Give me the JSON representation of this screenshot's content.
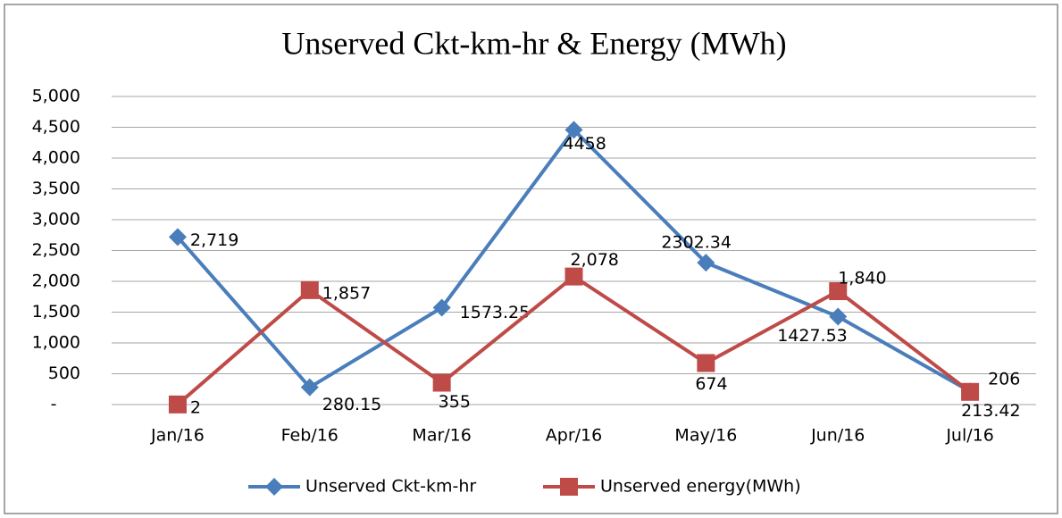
{
  "chart_data": {
    "type": "line",
    "title": "Unserved Ckt-km-hr & Energy (MWh)",
    "categories": [
      "Jan/16",
      "Feb/16",
      "Mar/16",
      "Apr/16",
      "May/16",
      "Jun/16",
      "Jul/16"
    ],
    "series": [
      {
        "name": "Unserved Ckt-km-hr",
        "color": "#4a7ebb",
        "marker": "diamond",
        "values": [
          2719,
          280.15,
          1573.25,
          4458,
          2302.34,
          1427.53,
          213.42
        ],
        "value_labels": [
          "2,719",
          "280.15",
          "1573.25",
          "4458",
          "2302.34",
          "1427.53",
          "213.42"
        ]
      },
      {
        "name": "Unserved energy(MWh)",
        "color": "#be4b48",
        "marker": "square",
        "values": [
          2,
          1857,
          355,
          2078,
          674,
          1840,
          206
        ],
        "value_labels": [
          "2",
          "1,857",
          "355",
          "2,078",
          "674",
          "1,840",
          "206"
        ]
      }
    ],
    "ylim": [
      0,
      5000
    ],
    "yticks": [
      {
        "value": 0,
        "label": "-"
      },
      500,
      {
        "value": 1000,
        "label": "1,000"
      },
      {
        "value": 1500,
        "label": "1,500"
      },
      {
        "value": 2000,
        "label": "2,000"
      },
      {
        "value": 2500,
        "label": "2,500"
      },
      {
        "value": 3000,
        "label": "3,000"
      },
      {
        "value": 3500,
        "label": "3,500"
      },
      {
        "value": 4000,
        "label": "4,000"
      },
      {
        "value": 4500,
        "label": "4,500"
      },
      {
        "value": 5000,
        "label": "5,000"
      }
    ],
    "grid": true,
    "legend": "bottom"
  }
}
